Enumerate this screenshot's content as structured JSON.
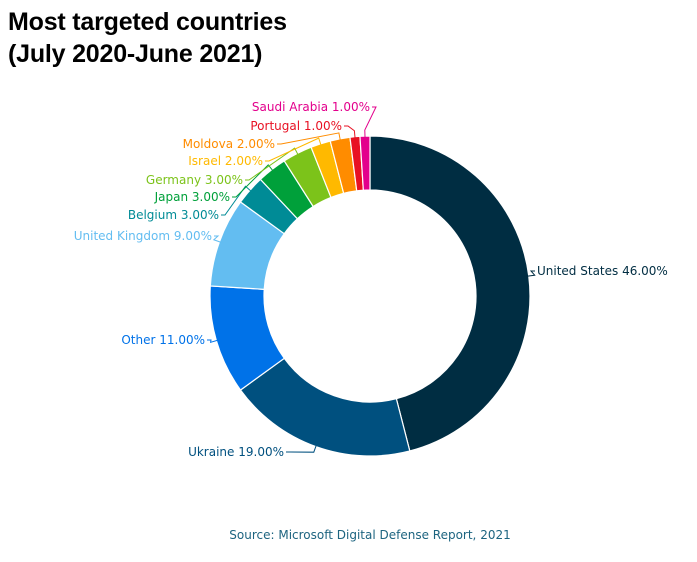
{
  "title_line1": "Most targeted countries",
  "title_line2": "(July 2020-June 2021)",
  "source": "Source: Microsoft Digital Defense Report, 2021",
  "chart_data": {
    "type": "pie",
    "variant": "donut",
    "slices": [
      {
        "label": "United States",
        "value": 46.0,
        "display": "United States 46.00%",
        "color": "#002d42"
      },
      {
        "label": "Ukraine",
        "value": 19.0,
        "display": "Ukraine 19.00%",
        "color": "#00507f"
      },
      {
        "label": "Other",
        "value": 11.0,
        "display": "Other 11.00%",
        "color": "#0072e8"
      },
      {
        "label": "United Kingdom",
        "value": 9.0,
        "display": "United Kingdom 9.00%",
        "color": "#63bdf1"
      },
      {
        "label": "Belgium",
        "value": 3.0,
        "display": "Belgium 3.00%",
        "color": "#008b96"
      },
      {
        "label": "Japan",
        "value": 3.0,
        "display": "Japan 3.00%",
        "color": "#00a03a"
      },
      {
        "label": "Germany",
        "value": 3.0,
        "display": "Germany 3.00%",
        "color": "#7cc31a"
      },
      {
        "label": "Israel",
        "value": 2.0,
        "display": "Israel 2.00%",
        "color": "#ffb900"
      },
      {
        "label": "Moldova",
        "value": 2.0,
        "display": "Moldova 2.00%",
        "color": "#ff8c00"
      },
      {
        "label": "Portugal",
        "value": 1.0,
        "display": "Portugal 1.00%",
        "color": "#e81123"
      },
      {
        "label": "Saudi Arabia",
        "value": 1.0,
        "display": "Saudi Arabia 1.00%",
        "color": "#e3008c"
      }
    ]
  }
}
